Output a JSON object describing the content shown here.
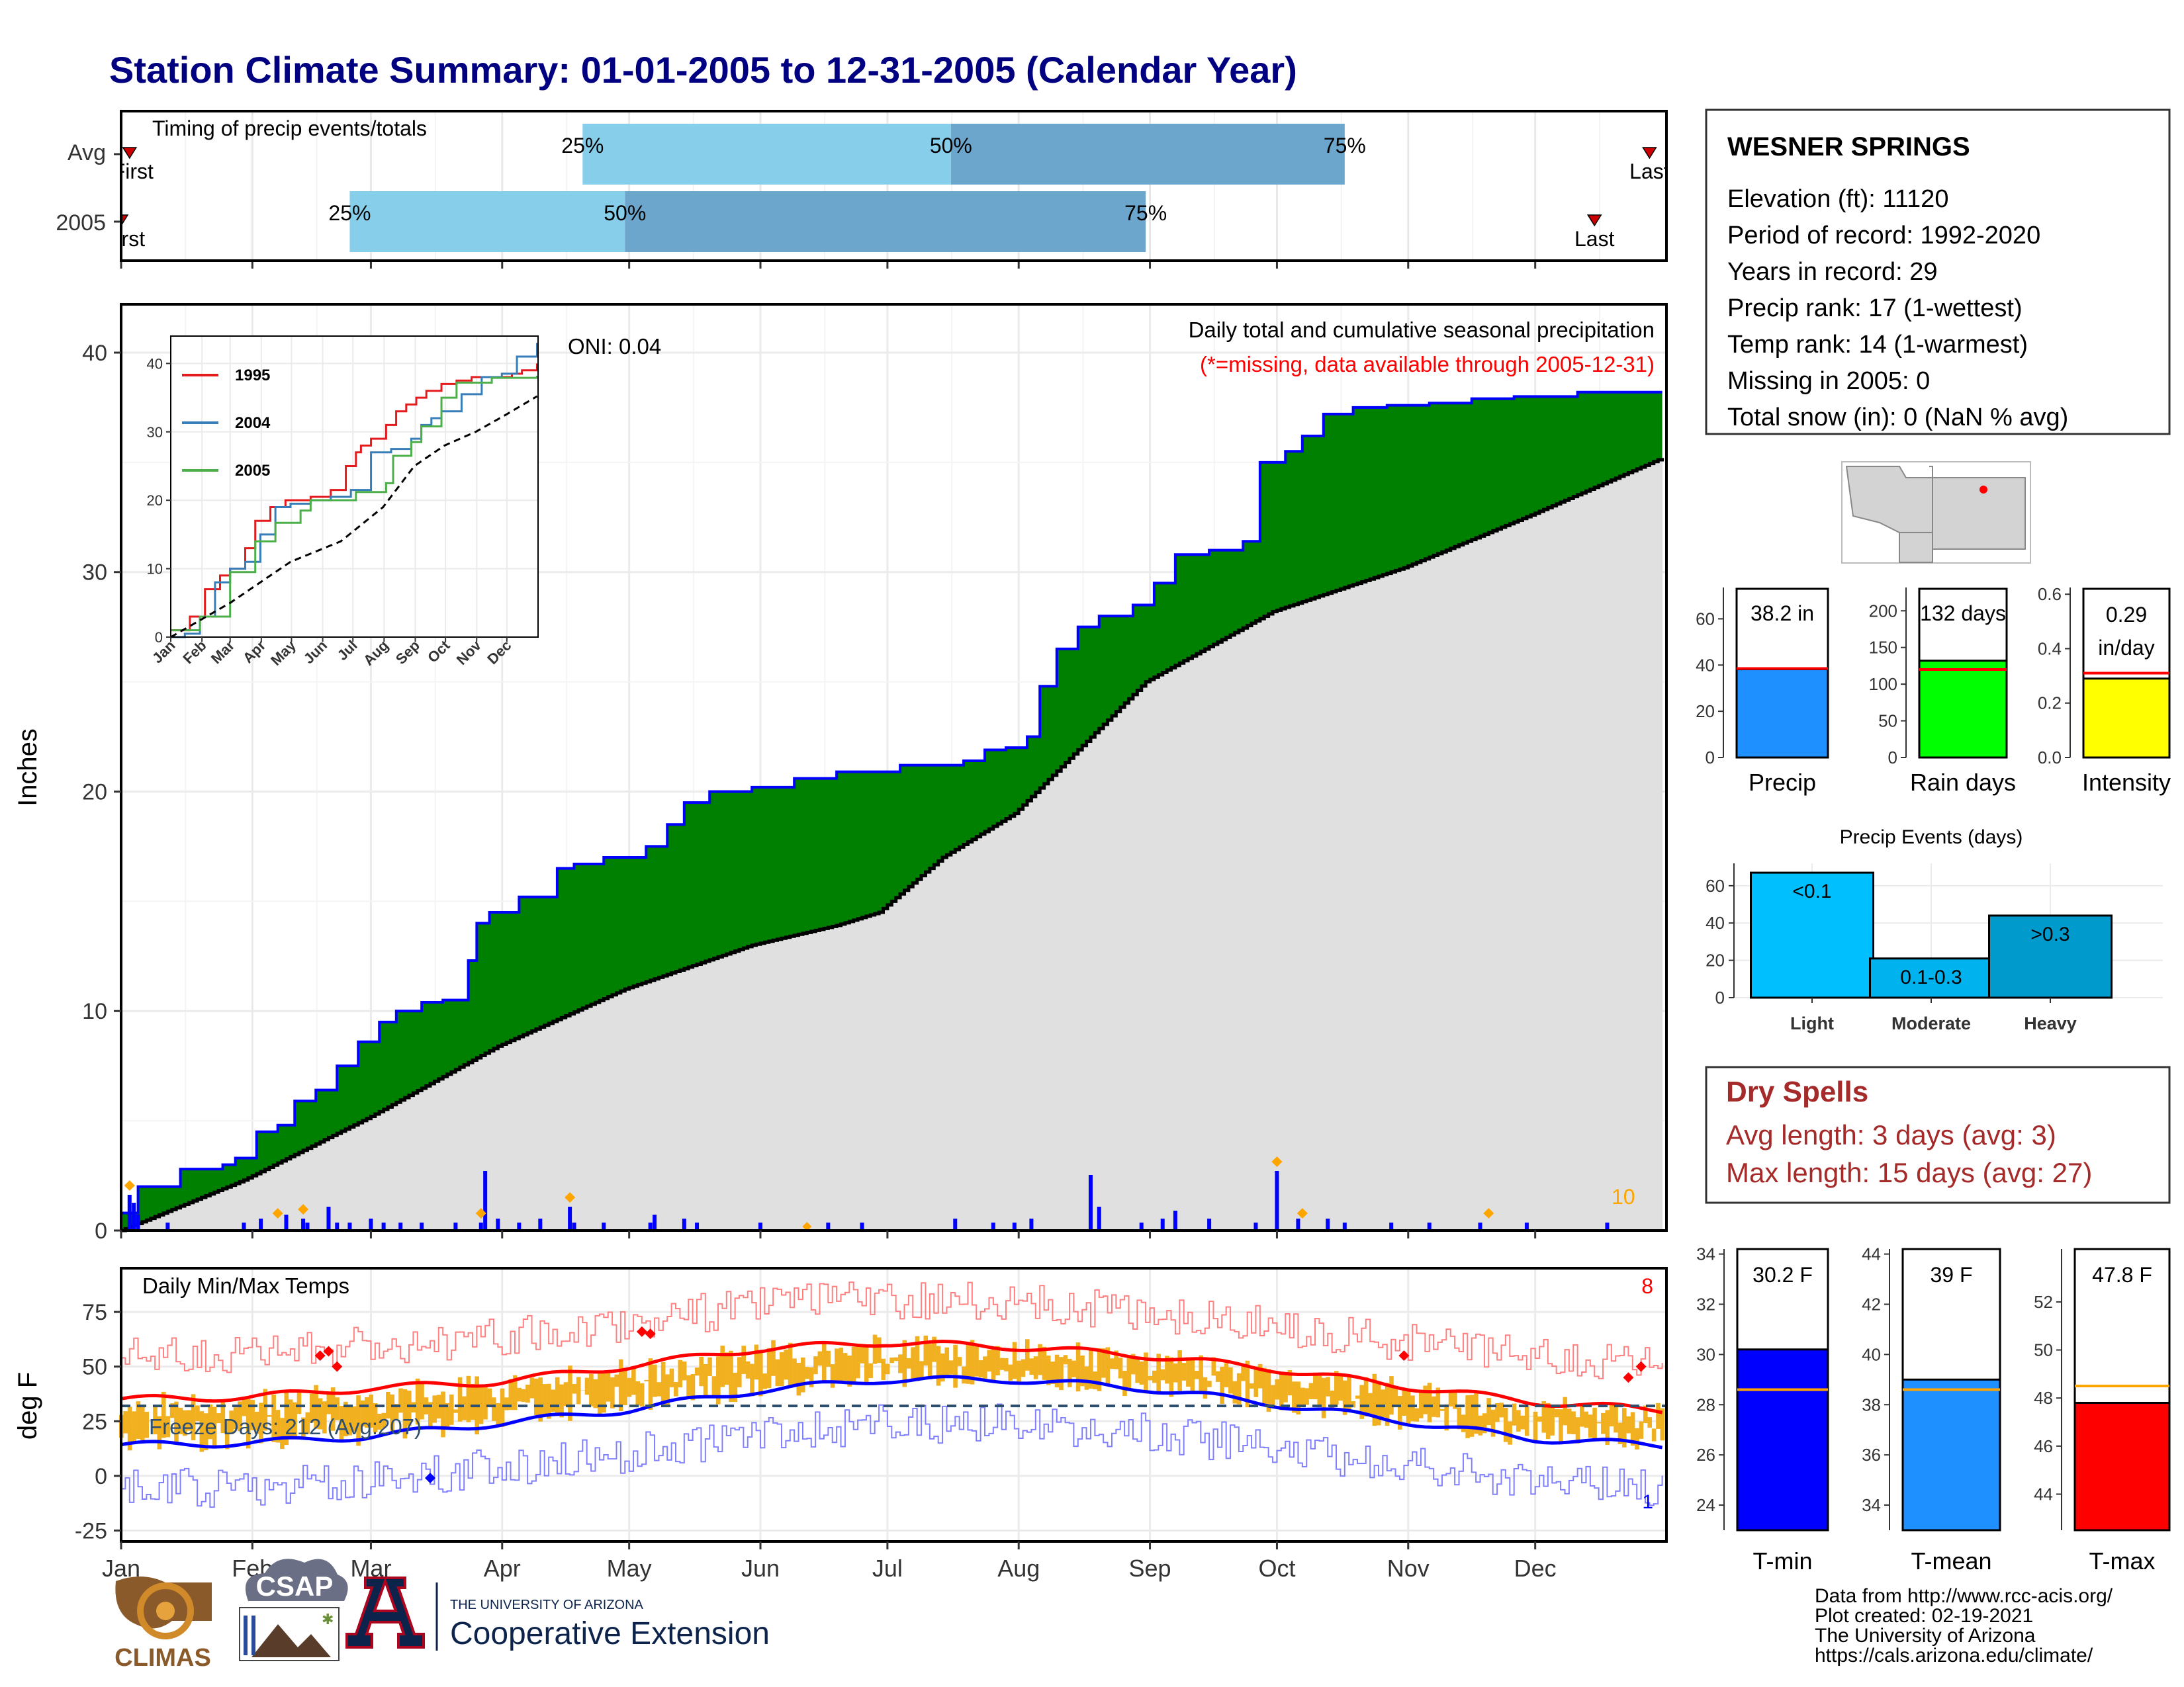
{
  "title": "Station Climate Summary: 01-01-2005 to 12-31-2005 (Calendar Year)",
  "months": [
    "Jan",
    "Feb",
    "Mar",
    "Apr",
    "May",
    "Jun",
    "Jul",
    "Aug",
    "Sep",
    "Oct",
    "Nov",
    "Dec"
  ],
  "timing": {
    "label": "Timing of precip events/totals",
    "rows": [
      {
        "name": "Avg",
        "first": "First",
        "last": "Last",
        "first_day": 3,
        "last_day": 362,
        "p25": 110,
        "p50": 197,
        "p75": 290
      },
      {
        "name": "2005",
        "first": "First",
        "last": "Last",
        "first_day": 1,
        "last_day": 349,
        "p25": 55,
        "p50": 120,
        "p75": 243
      }
    ],
    "p_labels": [
      "25%",
      "50%",
      "75%"
    ]
  },
  "station": {
    "name": "WESNER SPRINGS",
    "lines": [
      "Elevation (ft): 11120",
      "Period of record: 1992-2020",
      "Years in record: 29",
      "Precip rank: 17 (1-wettest)",
      "Temp rank: 14 (1-warmest)",
      "Missing in 2005: 0",
      "Total snow (in): 0 (NaN % avg)"
    ]
  },
  "precip": {
    "ylabel": "Inches",
    "title": "Daily total and cumulative seasonal precipitation",
    "subtitle": "(*=missing, data available through 2005-12-31)",
    "oni": "ONI: 0.04",
    "count_label": "10",
    "yticks": [
      0,
      10,
      20,
      30,
      40
    ],
    "cumulative_2005": [
      [
        1,
        0.8
      ],
      [
        5,
        2.0
      ],
      [
        15,
        2.8
      ],
      [
        25,
        3.0
      ],
      [
        28,
        3.3
      ],
      [
        33,
        4.5
      ],
      [
        38,
        4.8
      ],
      [
        42,
        5.9
      ],
      [
        47,
        6.4
      ],
      [
        52,
        7.5
      ],
      [
        57,
        8.6
      ],
      [
        62,
        9.5
      ],
      [
        66,
        10.0
      ],
      [
        72,
        10.4
      ],
      [
        77,
        10.5
      ],
      [
        83,
        12.3
      ],
      [
        85,
        14.0
      ],
      [
        88,
        14.5
      ],
      [
        95,
        15.2
      ],
      [
        104,
        16.5
      ],
      [
        108,
        16.7
      ],
      [
        115,
        17.0
      ],
      [
        125,
        17.5
      ],
      [
        130,
        18.5
      ],
      [
        134,
        19.5
      ],
      [
        140,
        20.0
      ],
      [
        150,
        20.2
      ],
      [
        160,
        20.6
      ],
      [
        170,
        20.9
      ],
      [
        185,
        21.2
      ],
      [
        200,
        21.4
      ],
      [
        205,
        21.9
      ],
      [
        210,
        22.0
      ],
      [
        215,
        22.5
      ],
      [
        218,
        24.8
      ],
      [
        222,
        26.5
      ],
      [
        227,
        27.5
      ],
      [
        232,
        28.0
      ],
      [
        240,
        28.5
      ],
      [
        245,
        29.5
      ],
      [
        250,
        30.8
      ],
      [
        258,
        31.0
      ],
      [
        266,
        31.4
      ],
      [
        270,
        35.0
      ],
      [
        276,
        35.5
      ],
      [
        280,
        36.2
      ],
      [
        285,
        37.2
      ],
      [
        292,
        37.5
      ],
      [
        300,
        37.6
      ],
      [
        310,
        37.7
      ],
      [
        320,
        37.9
      ],
      [
        330,
        38.0
      ],
      [
        345,
        38.2
      ],
      [
        365,
        38.2
      ]
    ],
    "average_cumulative": [
      [
        1,
        0
      ],
      [
        30,
        2.3
      ],
      [
        60,
        5.2
      ],
      [
        90,
        8.4
      ],
      [
        120,
        11.0
      ],
      [
        150,
        13.0
      ],
      [
        170,
        13.9
      ],
      [
        180,
        14.5
      ],
      [
        195,
        17.0
      ],
      [
        212,
        19.0
      ],
      [
        243,
        25.0
      ],
      [
        273,
        28.2
      ],
      [
        304,
        30.2
      ],
      [
        334,
        32.6
      ],
      [
        365,
        35.2
      ]
    ],
    "daily_spikes": [
      [
        3,
        0.9
      ],
      [
        4,
        0.7
      ],
      [
        5,
        0.4
      ],
      [
        12,
        0.2
      ],
      [
        30,
        0.2
      ],
      [
        34,
        0.3
      ],
      [
        40,
        0.4
      ],
      [
        44,
        0.3
      ],
      [
        45,
        0.2
      ],
      [
        50,
        0.6
      ],
      [
        52,
        0.2
      ],
      [
        55,
        0.2
      ],
      [
        60,
        0.3
      ],
      [
        63,
        0.2
      ],
      [
        67,
        0.2
      ],
      [
        72,
        0.2
      ],
      [
        80,
        0.2
      ],
      [
        86,
        0.2
      ],
      [
        87,
        1.5
      ],
      [
        90,
        0.3
      ],
      [
        95,
        0.2
      ],
      [
        100,
        0.3
      ],
      [
        107,
        0.6
      ],
      [
        108,
        0.2
      ],
      [
        115,
        0.2
      ],
      [
        126,
        0.2
      ],
      [
        127,
        0.4
      ],
      [
        134,
        0.3
      ],
      [
        137,
        0.2
      ],
      [
        152,
        0.2
      ],
      [
        168,
        0.2
      ],
      [
        176,
        0.2
      ],
      [
        198,
        0.3
      ],
      [
        207,
        0.2
      ],
      [
        212,
        0.2
      ],
      [
        216,
        0.3
      ],
      [
        230,
        1.4
      ],
      [
        232,
        0.6
      ],
      [
        242,
        0.2
      ],
      [
        247,
        0.3
      ],
      [
        250,
        0.5
      ],
      [
        258,
        0.3
      ],
      [
        269,
        0.2
      ],
      [
        274,
        1.5
      ],
      [
        279,
        0.3
      ],
      [
        286,
        0.3
      ],
      [
        290,
        0.2
      ],
      [
        301,
        0.2
      ],
      [
        310,
        0.2
      ],
      [
        322,
        0.2
      ],
      [
        333,
        0.2
      ],
      [
        352,
        0.2
      ]
    ],
    "extreme_markers": [
      3,
      38,
      44,
      86,
      107,
      274,
      280,
      324
    ],
    "missing_markers": [
      163
    ]
  },
  "inset": {
    "xticks": [
      "Jan",
      "Feb",
      "Mar",
      "Apr",
      "May",
      "Jun",
      "Jul",
      "Aug",
      "Sep",
      "Oct",
      "Nov",
      "Dec"
    ],
    "yticks": [
      0,
      10,
      20,
      30,
      40
    ],
    "legend": [
      {
        "name": "1995",
        "color": "#e41a1c"
      },
      {
        "name": "2004",
        "color": "#377eb8"
      },
      {
        "name": "2005",
        "color": "#4daf4a"
      }
    ],
    "series": {
      "1995": [
        [
          1,
          1
        ],
        [
          20,
          3
        ],
        [
          35,
          7
        ],
        [
          50,
          9
        ],
        [
          60,
          10
        ],
        [
          75,
          13
        ],
        [
          85,
          17
        ],
        [
          100,
          19
        ],
        [
          115,
          20
        ],
        [
          140,
          20.5
        ],
        [
          160,
          21.5
        ],
        [
          175,
          25
        ],
        [
          185,
          27
        ],
        [
          190,
          28
        ],
        [
          200,
          29
        ],
        [
          215,
          31
        ],
        [
          225,
          33
        ],
        [
          235,
          34
        ],
        [
          245,
          35
        ],
        [
          255,
          36
        ],
        [
          270,
          37
        ],
        [
          285,
          37.5
        ],
        [
          300,
          38
        ],
        [
          320,
          38
        ],
        [
          340,
          38.5
        ],
        [
          350,
          39
        ],
        [
          365,
          40
        ]
      ],
      "2004": [
        [
          1,
          0
        ],
        [
          15,
          0.5
        ],
        [
          30,
          3
        ],
        [
          45,
          8
        ],
        [
          60,
          10
        ],
        [
          75,
          11
        ],
        [
          90,
          15
        ],
        [
          105,
          19
        ],
        [
          120,
          19.5
        ],
        [
          140,
          20
        ],
        [
          160,
          20.5
        ],
        [
          180,
          21.5
        ],
        [
          200,
          27
        ],
        [
          220,
          27.5
        ],
        [
          240,
          29
        ],
        [
          250,
          31
        ],
        [
          260,
          32
        ],
        [
          270,
          33
        ],
        [
          290,
          35.5
        ],
        [
          310,
          38
        ],
        [
          330,
          38.5
        ],
        [
          345,
          41
        ],
        [
          365,
          43
        ]
      ],
      "2005": [
        [
          1,
          1
        ],
        [
          30,
          3
        ],
        [
          60,
          9.5
        ],
        [
          85,
          14
        ],
        [
          105,
          16.7
        ],
        [
          130,
          18.5
        ],
        [
          140,
          20
        ],
        [
          185,
          21.2
        ],
        [
          215,
          22.5
        ],
        [
          222,
          26.5
        ],
        [
          240,
          28.5
        ],
        [
          250,
          30.8
        ],
        [
          270,
          35
        ],
        [
          285,
          37.2
        ],
        [
          320,
          37.9
        ],
        [
          365,
          38.2
        ]
      ],
      "avg": [
        [
          1,
          0
        ],
        [
          60,
          5
        ],
        [
          120,
          11
        ],
        [
          170,
          14
        ],
        [
          212,
          19
        ],
        [
          243,
          25
        ],
        [
          273,
          28
        ],
        [
          304,
          30
        ],
        [
          334,
          32.5
        ],
        [
          365,
          35.2
        ]
      ]
    }
  },
  "temps": {
    "ylabel": "deg F",
    "title": "Daily Min/Max Temps",
    "freeze": "Freeze Days: 212 (Avg:207)",
    "hot_count": "8",
    "cold_count": "1",
    "yticks": [
      -25,
      0,
      25,
      50,
      75
    ],
    "freeze_line": 32,
    "avg_max": [
      [
        1,
        35
      ],
      [
        31,
        36
      ],
      [
        59,
        40
      ],
      [
        90,
        43
      ],
      [
        120,
        50
      ],
      [
        151,
        58
      ],
      [
        181,
        61
      ],
      [
        212,
        59
      ],
      [
        243,
        55
      ],
      [
        273,
        49
      ],
      [
        304,
        41
      ],
      [
        334,
        34
      ],
      [
        365,
        30
      ]
    ],
    "avg_min": [
      [
        1,
        14
      ],
      [
        31,
        15
      ],
      [
        59,
        18
      ],
      [
        90,
        24
      ],
      [
        120,
        30
      ],
      [
        151,
        39
      ],
      [
        181,
        44
      ],
      [
        212,
        44
      ],
      [
        243,
        40
      ],
      [
        273,
        33
      ],
      [
        304,
        25
      ],
      [
        334,
        17
      ],
      [
        365,
        14
      ]
    ],
    "hot_markers": [
      [
        48,
        55
      ],
      [
        50,
        57
      ],
      [
        52,
        50
      ],
      [
        124,
        66
      ],
      [
        126,
        65
      ],
      [
        304,
        55
      ],
      [
        357,
        45
      ],
      [
        360,
        50
      ]
    ],
    "cold_markers": [
      [
        74,
        -1
      ]
    ]
  },
  "summary_bars": [
    {
      "label": "Precip",
      "value_text": "38.2 in",
      "value": 38.2,
      "avg": 38.5,
      "color": "#1e90ff",
      "yticks": [
        0,
        20,
        40,
        60
      ],
      "ymax": 73
    },
    {
      "label": "Rain days",
      "value_text": "132 days",
      "value": 132,
      "avg": 120,
      "color": "#00ff00",
      "yticks": [
        0,
        50,
        100,
        150,
        200
      ],
      "ymax": 230
    },
    {
      "label": "Intensity",
      "value_text": "0.29 in/day",
      "value": 0.29,
      "avg": 0.31,
      "color": "#ffff00",
      "yticks": [
        "0.0",
        "0.2",
        "0.4",
        "0.6"
      ],
      "ymax": 0.62
    }
  ],
  "precip_events": {
    "title": "Precip Events (days)",
    "yticks": [
      0,
      20,
      40,
      60
    ],
    "bars": [
      {
        "name": "Light",
        "label": "<0.1",
        "value": 67,
        "color": "#00bfff"
      },
      {
        "name": "Moderate",
        "label": "0.1-0.3",
        "value": 21,
        "color": "#00b2ee"
      },
      {
        "name": "Heavy",
        "label": ">0.3",
        "value": 44,
        "color": "#009acd"
      }
    ]
  },
  "dry_spells": {
    "title": "Dry Spells",
    "lines": [
      "Avg length: 3 days (avg: 3)",
      "Max length: 15 days (avg: 27)"
    ]
  },
  "temp_bars": [
    {
      "label": "T-min",
      "value_text": "30.2 F",
      "value": 30.2,
      "avg": 28.6,
      "color": "#0000ff",
      "yticks": [
        24,
        26,
        28,
        30,
        32,
        34
      ],
      "ymin": 23,
      "ymax": 34.2
    },
    {
      "label": "T-mean",
      "value_text": "39 F",
      "value": 39,
      "avg": 38.6,
      "color": "#1e90ff",
      "yticks": [
        34,
        36,
        38,
        40,
        42,
        44
      ],
      "ymin": 33,
      "ymax": 44.2
    },
    {
      "label": "T-max",
      "value_text": "47.8 F",
      "value": 47.8,
      "avg": 48.5,
      "color": "#ff0000",
      "yticks": [
        44,
        46,
        48,
        50,
        52
      ],
      "ymin": 42.5,
      "ymax": 54.2
    }
  ],
  "credits": [
    "Data from http://www.rcc-acis.org/",
    "Plot created: 02-19-2021",
    "The University of Arizona",
    "https://cals.arizona.edu/climate/"
  ],
  "logos": {
    "climas": "CLIMAS",
    "csap": "CSAP",
    "ua_small": "THE UNIVERSITY OF ARIZONA",
    "ua_big": "Cooperative Extension"
  },
  "colors": {
    "title": "#000080",
    "cum_fill": "#008000",
    "avg_fill": "#e0e0e0",
    "accent_red": "#a52a2a",
    "temp_bar": "#f0b020"
  }
}
